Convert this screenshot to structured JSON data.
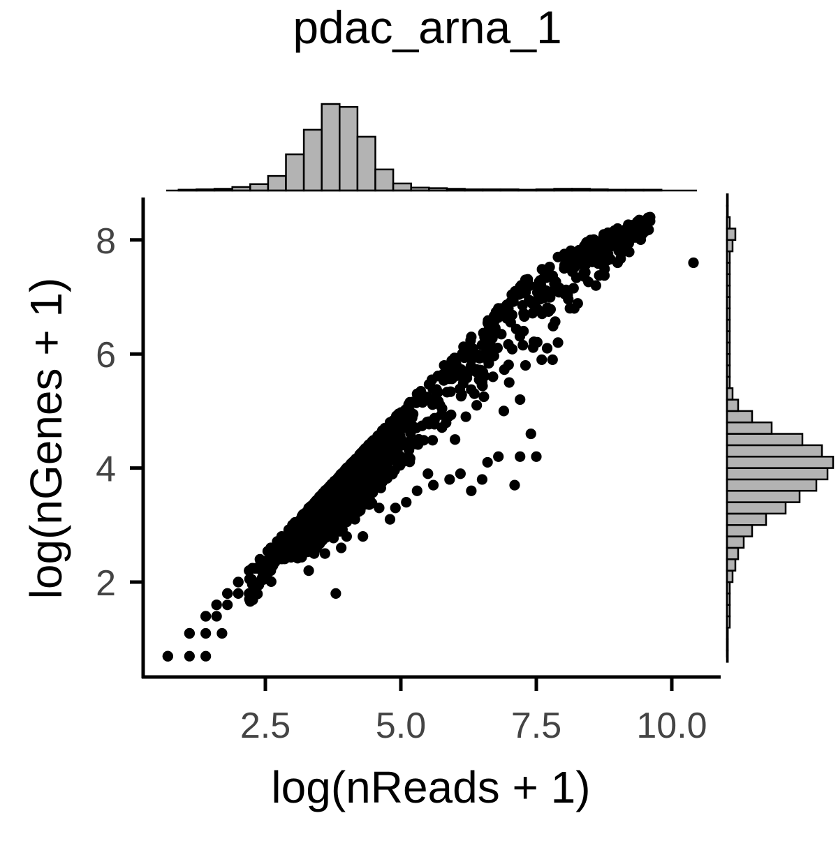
{
  "chart_data": {
    "type": "scatter",
    "title": "pdac_arna_1",
    "xlabel": "log(nReads + 1)",
    "ylabel": "log(nGenes + 1)",
    "xlim": [
      0.5,
      10.8
    ],
    "ylim": [
      0.55,
      8.75
    ],
    "x_ticks": [
      2.5,
      5.0,
      7.5,
      10.0
    ],
    "x_tick_labels": [
      "2.5",
      "5.0",
      "7.5",
      "10.0"
    ],
    "y_ticks": [
      2,
      4,
      6,
      8
    ],
    "y_tick_labels": [
      "2",
      "4",
      "6",
      "8"
    ],
    "grid": false,
    "legend": "none",
    "colors": {
      "points": "#000000",
      "histogram_fill": "#b3b3b3",
      "histogram_edge": "#000000",
      "tick_text": "#444444"
    },
    "marginal_x_histogram": {
      "bin_width": 0.33,
      "bin_start": 0.9,
      "counts": [
        1,
        2,
        3,
        6,
        11,
        25,
        62,
        104,
        148,
        143,
        92,
        36,
        12,
        5,
        4,
        3,
        2,
        2,
        2,
        1,
        2,
        3,
        3,
        2,
        1,
        1,
        1
      ]
    },
    "marginal_y_histogram": {
      "bin_width": 0.2,
      "bin_start": 0.6,
      "counts": [
        0,
        0,
        0,
        1,
        1,
        1,
        1,
        2,
        3,
        4,
        6,
        9,
        14,
        21,
        26,
        32,
        36,
        38,
        34,
        27,
        16,
        9,
        4,
        2,
        1,
        1,
        1,
        1,
        1,
        1,
        1,
        1,
        1,
        1,
        1,
        1,
        2,
        3,
        1,
        0,
        0
      ]
    },
    "core": {
      "points": [
        [
          0.7,
          0.7
        ],
        [
          1.1,
          1.1
        ],
        [
          1.4,
          1.4
        ],
        [
          1.6,
          1.6
        ],
        [
          1.8,
          1.8
        ],
        [
          2.0,
          2.0
        ],
        [
          2.2,
          2.2
        ],
        [
          2.4,
          2.4
        ],
        [
          2.6,
          2.6
        ],
        [
          2.8,
          2.8
        ],
        [
          3.0,
          3.0
        ],
        [
          3.3,
          3.3
        ],
        [
          3.6,
          3.6
        ],
        [
          4.0,
          4.0
        ],
        [
          4.4,
          4.4
        ],
        [
          4.8,
          4.8
        ],
        [
          5.3,
          5.3
        ],
        [
          5.8,
          5.8
        ],
        [
          6.3,
          6.3
        ],
        [
          6.8,
          6.8
        ],
        [
          7.3,
          7.3
        ],
        [
          7.9,
          7.7
        ],
        [
          8.5,
          8.0
        ],
        [
          9.0,
          8.2
        ],
        [
          9.4,
          8.35
        ],
        [
          9.6,
          8.4
        ]
      ],
      "lower_band": [
        [
          0.7,
          0.7
        ],
        [
          1.1,
          0.7
        ],
        [
          1.4,
          0.7
        ],
        [
          1.8,
          1.1
        ],
        [
          2.2,
          1.4
        ],
        [
          2.6,
          1.8
        ],
        [
          3.0,
          2.1
        ],
        [
          3.5,
          2.4
        ],
        [
          4.0,
          2.8
        ],
        [
          4.5,
          3.2
        ],
        [
          5.0,
          3.6
        ],
        [
          5.5,
          4.0
        ],
        [
          6.0,
          4.5
        ],
        [
          6.5,
          4.9
        ],
        [
          7.0,
          5.4
        ],
        [
          7.5,
          5.8
        ],
        [
          8.0,
          6.4
        ],
        [
          8.5,
          6.9
        ],
        [
          9.0,
          7.3
        ],
        [
          9.5,
          8.0
        ]
      ]
    },
    "outliers": [
      [
        0.7,
        0.7
      ],
      [
        1.1,
        0.7
      ],
      [
        1.4,
        0.7
      ],
      [
        1.1,
        1.1
      ],
      [
        1.4,
        1.1
      ],
      [
        1.7,
        1.1
      ],
      [
        1.4,
        1.4
      ],
      [
        1.6,
        1.4
      ],
      [
        1.6,
        1.6
      ],
      [
        1.8,
        1.6
      ],
      [
        1.8,
        1.8
      ],
      [
        2.0,
        1.8
      ],
      [
        2.0,
        2.0
      ],
      [
        2.2,
        1.8
      ],
      [
        2.4,
        2.0
      ],
      [
        2.6,
        2.2
      ],
      [
        3.3,
        2.2
      ],
      [
        3.8,
        1.8
      ],
      [
        3.4,
        2.5
      ],
      [
        3.6,
        2.5
      ],
      [
        3.9,
        2.6
      ],
      [
        4.0,
        2.8
      ],
      [
        4.3,
        2.8
      ],
      [
        4.6,
        3.3
      ],
      [
        4.8,
        3.1
      ],
      [
        4.9,
        3.3
      ],
      [
        5.1,
        3.4
      ],
      [
        5.3,
        3.6
      ],
      [
        5.6,
        3.7
      ],
      [
        5.5,
        3.9
      ],
      [
        5.9,
        3.8
      ],
      [
        6.1,
        3.9
      ],
      [
        6.3,
        3.6
      ],
      [
        6.5,
        3.8
      ],
      [
        6.6,
        4.1
      ],
      [
        6.8,
        4.2
      ],
      [
        7.2,
        4.2
      ],
      [
        7.1,
        3.7
      ],
      [
        7.5,
        4.2
      ],
      [
        7.4,
        4.6
      ],
      [
        6.0,
        4.5
      ],
      [
        6.2,
        4.9
      ],
      [
        6.4,
        5.1
      ],
      [
        6.9,
        5.0
      ],
      [
        7.2,
        5.2
      ],
      [
        6.7,
        5.6
      ],
      [
        7.0,
        5.5
      ],
      [
        7.3,
        5.8
      ],
      [
        7.6,
        5.9
      ],
      [
        7.8,
        5.9
      ],
      [
        7.7,
        6.1
      ],
      [
        7.9,
        6.2
      ],
      [
        8.2,
        6.8
      ],
      [
        8.6,
        7.2
      ],
      [
        9.0,
        7.6
      ],
      [
        10.4,
        7.6
      ]
    ]
  }
}
